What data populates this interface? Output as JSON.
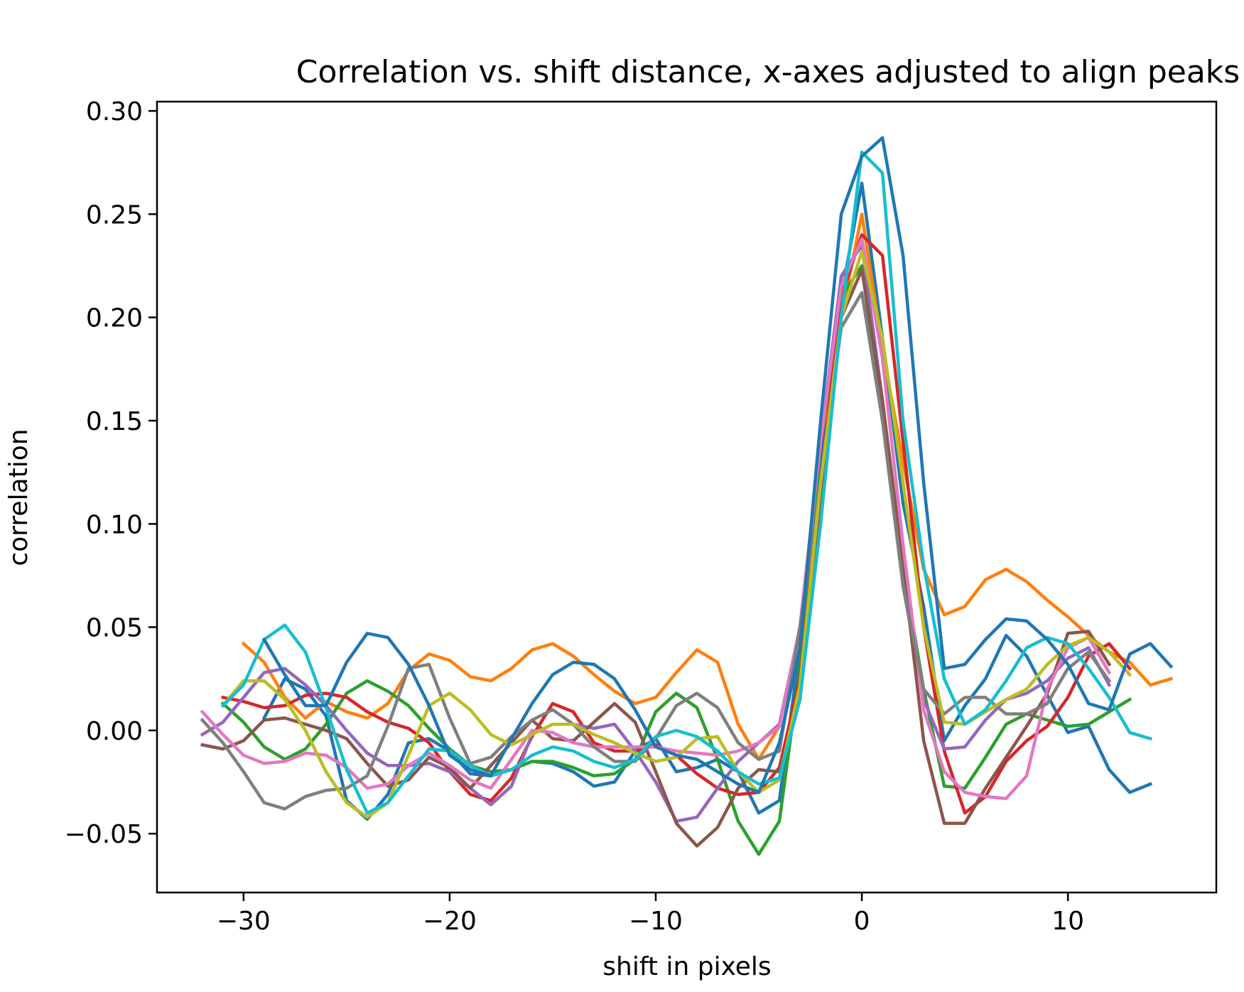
{
  "chart_data": {
    "type": "line",
    "title": "Correlation vs. shift distance, x-axes adjusted to align peaks",
    "xlabel": "shift in pixels",
    "ylabel": "correlation",
    "xlim": [
      -34.2,
      17.2
    ],
    "ylim": [
      -0.0785,
      0.3045
    ],
    "xticks": [
      -30,
      -20,
      -10,
      0,
      10
    ],
    "xtick_labels": [
      "−30",
      "−20",
      "−10",
      "0",
      "10"
    ],
    "yticks": [
      -0.05,
      0.0,
      0.05,
      0.1,
      0.15,
      0.2,
      0.25,
      0.3
    ],
    "ytick_labels": [
      "−0.05",
      "0.00",
      "0.05",
      "0.10",
      "0.15",
      "0.20",
      "0.25",
      "0.30"
    ],
    "grid": false,
    "legend": false,
    "series": [
      {
        "color": "#1f77b4",
        "x": [
          -29,
          -28,
          -27,
          -26,
          -25,
          -24,
          -23,
          -22,
          -21,
          -20,
          -19,
          -18,
          -17,
          -16,
          -15,
          -14,
          -13,
          -12,
          -11,
          -10,
          -9,
          -8,
          -7,
          -6,
          -5,
          -4,
          -3,
          -2,
          -1,
          0,
          1,
          2,
          3,
          4,
          5,
          6,
          7,
          8,
          9,
          10,
          11,
          12,
          13,
          14,
          15
        ],
        "y": [
          0.006,
          0.025,
          0.02,
          0.007,
          -0.034,
          -0.043,
          -0.031,
          -0.006,
          -0.004,
          -0.01,
          -0.021,
          -0.022,
          -0.019,
          -0.015,
          -0.016,
          -0.02,
          -0.027,
          -0.025,
          -0.01,
          -0.004,
          -0.02,
          -0.018,
          -0.014,
          -0.02,
          -0.04,
          -0.034,
          0.04,
          0.13,
          0.21,
          0.265,
          0.19,
          0.11,
          0.06,
          -0.005,
          0.012,
          0.025,
          0.046,
          0.036,
          0.017,
          -0.001,
          0.002,
          -0.019,
          -0.03,
          -0.026,
          null
        ]
      },
      {
        "color": "#ff7f0e",
        "x": [
          -30,
          -29,
          -28,
          -27,
          -26,
          -25,
          -24,
          -23,
          -22,
          -21,
          -20,
          -19,
          -18,
          -17,
          -16,
          -15,
          -14,
          -13,
          -12,
          -11,
          -10,
          -9,
          -8,
          -7,
          -6,
          -5,
          -4,
          -3,
          -2,
          -1,
          0,
          1,
          2,
          3,
          4,
          5,
          6,
          7,
          8,
          9,
          10,
          11,
          12,
          13,
          14,
          15
        ],
        "y": [
          0.042,
          0.033,
          0.016,
          0.006,
          0.014,
          0.009,
          0.006,
          0.013,
          0.029,
          0.037,
          0.034,
          0.026,
          0.024,
          0.03,
          0.039,
          0.042,
          0.036,
          0.027,
          0.019,
          0.013,
          0.016,
          0.028,
          0.039,
          0.033,
          0.003,
          -0.014,
          0.002,
          0.05,
          0.14,
          0.2,
          0.25,
          0.185,
          0.13,
          0.078,
          0.056,
          0.06,
          0.073,
          0.078,
          0.072,
          0.063,
          0.055,
          0.046,
          0.038,
          0.033,
          0.022,
          0.025
        ]
      },
      {
        "color": "#2ca02c",
        "x": [
          -31,
          -30,
          -29,
          -28,
          -27,
          -26,
          -25,
          -24,
          -23,
          -22,
          -21,
          -20,
          -19,
          -18,
          -17,
          -16,
          -15,
          -14,
          -13,
          -12,
          -11,
          -10,
          -9,
          -8,
          -7,
          -6,
          -5,
          -4,
          -3,
          -2,
          -1,
          0,
          1,
          2,
          3,
          4,
          5,
          6,
          7,
          8,
          9,
          10,
          11,
          12,
          13
        ],
        "y": [
          0.013,
          0.004,
          -0.008,
          -0.014,
          -0.009,
          0.003,
          0.018,
          0.024,
          0.019,
          0.012,
          0.001,
          -0.009,
          -0.017,
          -0.02,
          -0.019,
          -0.015,
          -0.015,
          -0.018,
          -0.022,
          -0.021,
          -0.014,
          0.009,
          0.018,
          0.011,
          -0.014,
          -0.044,
          -0.06,
          -0.044,
          0.03,
          0.14,
          0.21,
          0.225,
          0.15,
          0.08,
          0.02,
          -0.027,
          -0.028,
          -0.013,
          0.003,
          0.008,
          0.005,
          0.002,
          0.003,
          0.009,
          0.015
        ]
      },
      {
        "color": "#d62728",
        "x": [
          -31,
          -30,
          -29,
          -28,
          -27,
          -26,
          -25,
          -24,
          -23,
          -22,
          -21,
          -20,
          -19,
          -18,
          -17,
          -16,
          -15,
          -14,
          -13,
          -12,
          -11,
          -10,
          -9,
          -8,
          -7,
          -6,
          -5,
          -4,
          -3,
          -2,
          -1,
          0,
          1,
          2,
          3,
          4,
          5,
          6,
          7,
          8,
          9,
          10,
          11,
          12,
          13
        ],
        "y": [
          0.016,
          0.014,
          0.011,
          0.012,
          0.017,
          0.018,
          0.016,
          0.009,
          0.004,
          0.001,
          -0.006,
          -0.02,
          -0.031,
          -0.034,
          -0.023,
          -0.003,
          0.013,
          0.009,
          -0.006,
          -0.01,
          -0.01,
          -0.007,
          -0.012,
          -0.021,
          -0.028,
          -0.031,
          -0.03,
          -0.018,
          0.025,
          0.12,
          0.21,
          0.24,
          0.23,
          0.14,
          0.05,
          -0.01,
          -0.04,
          -0.032,
          -0.015,
          -0.005,
          0.002,
          0.016,
          0.036,
          0.042,
          0.03
        ]
      },
      {
        "color": "#9467bd",
        "x": [
          -32,
          -31,
          -30,
          -29,
          -28,
          -27,
          -26,
          -25,
          -24,
          -23,
          -22,
          -21,
          -20,
          -19,
          -18,
          -17,
          -16,
          -15,
          -14,
          -13,
          -12,
          -11,
          -10,
          -9,
          -8,
          -7,
          -6,
          -5,
          -4,
          -3,
          -2,
          -1,
          0,
          1,
          2,
          3,
          4,
          5,
          6,
          7,
          8,
          9,
          10,
          11,
          12
        ],
        "y": [
          -0.002,
          0.004,
          0.016,
          0.028,
          0.03,
          0.022,
          0.012,
          0.0,
          -0.011,
          -0.017,
          -0.017,
          -0.016,
          -0.02,
          -0.028,
          -0.036,
          -0.027,
          -0.002,
          0.003,
          0.003,
          0.001,
          0.003,
          -0.01,
          -0.025,
          -0.044,
          -0.042,
          -0.028,
          -0.015,
          -0.006,
          0.003,
          0.05,
          0.14,
          0.22,
          0.235,
          0.16,
          0.07,
          0.015,
          -0.009,
          -0.008,
          0.005,
          0.015,
          0.018,
          0.024,
          0.035,
          0.04,
          0.022
        ]
      },
      {
        "color": "#8c564b",
        "x": [
          -32,
          -31,
          -30,
          -29,
          -28,
          -27,
          -26,
          -25,
          -24,
          -23,
          -22,
          -21,
          -20,
          -19,
          -18,
          -17,
          -16,
          -15,
          -14,
          -13,
          -12,
          -11,
          -10,
          -9,
          -8,
          -7,
          -6,
          -5,
          -4,
          -3,
          -2,
          -1,
          0,
          1,
          2,
          3,
          4,
          5,
          6,
          7,
          8,
          9,
          10,
          11,
          12
        ],
        "y": [
          -0.007,
          -0.009,
          -0.005,
          0.005,
          0.006,
          0.003,
          0.0,
          -0.004,
          -0.016,
          -0.027,
          -0.024,
          -0.013,
          -0.018,
          -0.028,
          -0.017,
          -0.006,
          0.005,
          -0.004,
          -0.005,
          0.004,
          0.013,
          0.004,
          -0.02,
          -0.045,
          -0.056,
          -0.047,
          -0.028,
          -0.019,
          -0.02,
          0.015,
          0.11,
          0.2,
          0.223,
          0.16,
          0.08,
          -0.005,
          -0.045,
          -0.045,
          -0.028,
          -0.013,
          0.002,
          0.018,
          0.047,
          0.048,
          0.032
        ]
      },
      {
        "color": "#e377c2",
        "x": [
          -32,
          -31,
          -30,
          -29,
          -28,
          -27,
          -26,
          -25,
          -24,
          -23,
          -22,
          -21,
          -20,
          -19,
          -18,
          -17,
          -16,
          -15,
          -14,
          -13,
          -12,
          -11,
          -10,
          -9,
          -8,
          -7,
          -6,
          -5,
          -4,
          -3,
          -2,
          -1,
          0,
          1,
          2,
          3,
          4,
          5,
          6,
          7,
          8,
          9,
          10,
          11,
          12
        ],
        "y": [
          0.009,
          -0.002,
          -0.012,
          -0.016,
          -0.015,
          -0.011,
          -0.012,
          -0.018,
          -0.028,
          -0.026,
          -0.017,
          -0.011,
          -0.017,
          -0.024,
          -0.028,
          -0.014,
          0.0,
          -0.001,
          -0.006,
          -0.008,
          -0.008,
          -0.008,
          -0.008,
          -0.01,
          -0.011,
          -0.012,
          -0.01,
          -0.006,
          0.002,
          0.05,
          0.14,
          0.215,
          0.238,
          0.18,
          0.09,
          0.01,
          -0.02,
          -0.03,
          -0.032,
          -0.033,
          -0.022,
          0.02,
          0.04,
          0.045,
          0.028
        ]
      },
      {
        "color": "#7f7f7f",
        "x": [
          -32,
          -31,
          -30,
          -29,
          -28,
          -27,
          -26,
          -25,
          -24,
          -23,
          -22,
          -21,
          -20,
          -19,
          -18,
          -17,
          -16,
          -15,
          -14,
          -13,
          -12,
          -11,
          -10,
          -9,
          -8,
          -7,
          -6,
          -5,
          -4,
          -3,
          -2,
          -1,
          0,
          1,
          2,
          3,
          4,
          5,
          6,
          7,
          8,
          9,
          10,
          11,
          12
        ],
        "y": [
          0.005,
          -0.006,
          -0.02,
          -0.035,
          -0.038,
          -0.032,
          -0.029,
          -0.028,
          -0.022,
          0.002,
          0.03,
          0.032,
          0.006,
          -0.016,
          -0.013,
          -0.003,
          0.005,
          0.01,
          0.003,
          -0.008,
          -0.015,
          -0.015,
          -0.004,
          0.012,
          0.018,
          0.011,
          -0.006,
          -0.014,
          -0.01,
          0.05,
          0.12,
          0.195,
          0.212,
          0.15,
          0.07,
          0.02,
          0.008,
          0.016,
          0.016,
          0.008,
          0.008,
          0.013,
          0.03,
          0.038,
          0.024
        ]
      },
      {
        "color": "#bcbd22",
        "x": [
          -31,
          -30,
          -29,
          -28,
          -27,
          -26,
          -25,
          -24,
          -23,
          -22,
          -21,
          -20,
          -19,
          -18,
          -17,
          -16,
          -15,
          -14,
          -13,
          -12,
          -11,
          -10,
          -9,
          -8,
          -7,
          -6,
          -5,
          -4,
          -3,
          -2,
          -1,
          0,
          1,
          2,
          3,
          4,
          5,
          6,
          7,
          8,
          9,
          10,
          11,
          12,
          13
        ],
        "y": [
          0.012,
          0.024,
          0.024,
          0.015,
          0.0,
          -0.02,
          -0.035,
          -0.042,
          -0.035,
          -0.012,
          0.012,
          0.018,
          0.01,
          -0.002,
          -0.007,
          -0.002,
          0.003,
          0.003,
          -0.002,
          -0.006,
          -0.011,
          -0.015,
          -0.013,
          -0.004,
          -0.003,
          -0.02,
          -0.03,
          -0.024,
          0.022,
          0.12,
          0.2,
          0.232,
          0.19,
          0.12,
          0.05,
          0.004,
          0.003,
          0.009,
          0.015,
          0.02,
          0.032,
          0.041,
          0.045,
          0.038,
          0.027
        ]
      },
      {
        "color": "#17becf",
        "x": [
          -31,
          -30,
          -29,
          -28,
          -27,
          -26,
          -25,
          -24,
          -23,
          -22,
          -21,
          -20,
          -19,
          -18,
          -17,
          -16,
          -15,
          -14,
          -13,
          -12,
          -11,
          -10,
          -9,
          -8,
          -7,
          -6,
          -5,
          -4,
          -3,
          -2,
          -1,
          0,
          1,
          2,
          3,
          4,
          5,
          6,
          7,
          8,
          9,
          10,
          11,
          12,
          13,
          14
        ],
        "y": [
          0.012,
          0.022,
          0.044,
          0.051,
          0.038,
          0.011,
          -0.019,
          -0.04,
          -0.035,
          -0.022,
          -0.009,
          -0.01,
          -0.017,
          -0.022,
          -0.019,
          -0.012,
          -0.008,
          -0.01,
          -0.015,
          -0.018,
          -0.014,
          -0.003,
          0.0,
          -0.003,
          -0.01,
          -0.02,
          -0.026,
          -0.023,
          0.015,
          0.1,
          0.2,
          0.28,
          0.27,
          0.15,
          0.08,
          0.025,
          0.003,
          0.01,
          0.024,
          0.04,
          0.045,
          0.042,
          0.03,
          0.016,
          -0.001,
          -0.004
        ]
      },
      {
        "color": "#1f77b4",
        "x": [
          -29,
          -28,
          -27,
          -26,
          -25,
          -24,
          -23,
          -22,
          -21,
          -20,
          -19,
          -18,
          -17,
          -16,
          -15,
          -14,
          -13,
          -12,
          -11,
          -10,
          -9,
          -8,
          -7,
          -6,
          -5,
          -4,
          -3,
          -2,
          -1,
          0,
          1,
          2,
          3,
          4,
          5,
          6,
          7,
          8,
          9,
          10,
          11,
          12,
          13,
          14,
          15
        ],
        "y": [
          0.044,
          0.027,
          0.012,
          0.012,
          0.033,
          0.047,
          0.045,
          0.032,
          0.012,
          -0.012,
          -0.019,
          -0.022,
          -0.004,
          0.013,
          0.027,
          0.033,
          0.032,
          0.025,
          0.01,
          -0.008,
          -0.012,
          -0.014,
          -0.02,
          -0.026,
          -0.03,
          -0.006,
          0.04,
          0.15,
          0.25,
          0.278,
          0.287,
          0.23,
          0.12,
          0.03,
          0.032,
          0.044,
          0.054,
          0.053,
          0.044,
          0.032,
          0.013,
          0.01,
          0.037,
          0.042,
          0.031
        ]
      }
    ]
  }
}
